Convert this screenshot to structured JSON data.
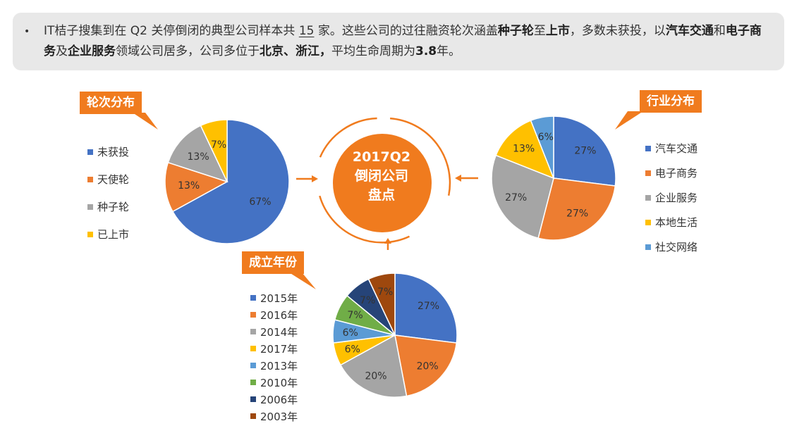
{
  "summary": {
    "bullet": "•",
    "t1": "IT桔子搜集到在 Q2 关停倒闭的典型公司样本共 ",
    "count": "15",
    "t2": " 家。这些公司的过往融资轮次涵盖",
    "b1": "种子轮",
    "t3": "至",
    "b2": "上市",
    "t4": "，多数未获投，以",
    "b3": "汽车交通",
    "t5": "和",
    "b4": "电子商务",
    "t6": "及",
    "b5": "企业服务",
    "t7": "领域公司居多，公司多位于",
    "b6": "北京、浙江，",
    "t8": "平均生命周期为",
    "b7": "3.8",
    "t9": "年。"
  },
  "center": {
    "line1": "2017Q2",
    "line2": "倒闭公司",
    "line3": "盘点"
  },
  "colors": {
    "accent": "#f07b1e"
  },
  "chart_data": [
    {
      "type": "pie",
      "title": "轮次分布",
      "legend_position": "left",
      "categories": [
        "未获投",
        "天使轮",
        "种子轮",
        "已上市"
      ],
      "values": [
        67,
        13,
        13,
        7
      ],
      "labels": [
        "67%",
        "13%",
        "13%",
        "7%"
      ],
      "colors": [
        "#4472c4",
        "#ed7d31",
        "#a5a5a5",
        "#ffc000"
      ]
    },
    {
      "type": "pie",
      "title": "行业分布",
      "legend_position": "right",
      "categories": [
        "汽车交通",
        "电子商务",
        "企业服务",
        "本地生活",
        "社交网络"
      ],
      "values": [
        27,
        27,
        27,
        13,
        6
      ],
      "labels": [
        "27%",
        "27%",
        "27%",
        "13%",
        "6%"
      ],
      "colors": [
        "#4472c4",
        "#ed7d31",
        "#a5a5a5",
        "#ffc000",
        "#5b9bd5"
      ]
    },
    {
      "type": "pie",
      "title": "成立年份",
      "legend_position": "left",
      "categories": [
        "2015年",
        "2016年",
        "2014年",
        "2017年",
        "2013年",
        "2010年",
        "2006年",
        "2003年"
      ],
      "values": [
        27,
        20,
        20,
        6,
        6,
        7,
        7,
        7
      ],
      "labels": [
        "27%",
        "20%",
        "20%",
        "6%",
        "6%",
        "7%",
        "7%",
        "7%"
      ],
      "colors": [
        "#4472c4",
        "#ed7d31",
        "#a5a5a5",
        "#ffc000",
        "#5b9bd5",
        "#70ad47",
        "#264478",
        "#9e480e"
      ]
    }
  ]
}
